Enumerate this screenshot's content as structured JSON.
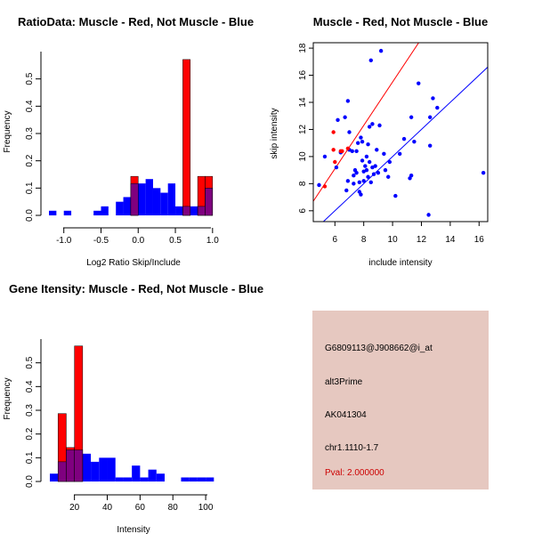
{
  "colors": {
    "red": "#ff0000",
    "blue": "#0000ff",
    "overlap": "#7f007f",
    "info_bg": "#e6c8c0",
    "pval": "#cc0000"
  },
  "chart_data": [
    {
      "type": "bar",
      "title": "RatioData: Muscle - Red, Not Muscle - Blue",
      "xlabel": "Log2 Ratio Skip/Include",
      "ylabel": "Frequency",
      "xlim": [
        -1.2,
        1.05
      ],
      "ylim": [
        0,
        0.6
      ],
      "xticks": [
        -1.0,
        -0.5,
        0.0,
        0.5,
        1.0
      ],
      "xtick_labels": [
        "-1.0",
        "-0.5",
        "0.0",
        "0.5",
        "1.0"
      ],
      "yticks": [
        0.0,
        0.1,
        0.2,
        0.3,
        0.4,
        0.5
      ],
      "ytick_labels": [
        "0.0",
        "0.1",
        "0.2",
        "0.3",
        "0.4",
        "0.5"
      ],
      "bin_width": 0.1,
      "series": [
        {
          "name": "Not Muscle",
          "color": "blue",
          "bins": [
            [
              -1.2,
              0.017
            ],
            [
              -1.0,
              0.017
            ],
            [
              -0.6,
              0.017
            ],
            [
              -0.5,
              0.033
            ],
            [
              -0.3,
              0.05
            ],
            [
              -0.2,
              0.067
            ],
            [
              -0.1,
              0.117
            ],
            [
              0.0,
              0.117
            ],
            [
              0.1,
              0.133
            ],
            [
              0.2,
              0.1
            ],
            [
              0.3,
              0.083
            ],
            [
              0.4,
              0.117
            ],
            [
              0.5,
              0.033
            ],
            [
              0.6,
              0.033
            ],
            [
              0.7,
              0.033
            ],
            [
              0.8,
              0.033
            ],
            [
              0.9,
              0.1
            ]
          ]
        },
        {
          "name": "Muscle",
          "color": "red",
          "bins": [
            [
              -0.1,
              0.143
            ],
            [
              0.6,
              0.571
            ],
            [
              0.8,
              0.143
            ],
            [
              0.9,
              0.143
            ]
          ]
        }
      ]
    },
    {
      "type": "scatter",
      "title": "Muscle - Red, Not Muscle - Blue",
      "xlabel": "include intensity",
      "ylabel": "skip intensity",
      "xlim": [
        4.5,
        16.6
      ],
      "ylim": [
        5.2,
        18.4
      ],
      "xticks": [
        6,
        8,
        10,
        12,
        14,
        16
      ],
      "xtick_labels": [
        "6",
        "8",
        "10",
        "12",
        "14",
        "16"
      ],
      "yticks": [
        6,
        8,
        10,
        12,
        14,
        16,
        18
      ],
      "ytick_labels": [
        "6",
        "8",
        "10",
        "12",
        "14",
        "16",
        "18"
      ],
      "lines": [
        {
          "name": "y = x",
          "color": "blue",
          "slope": 1,
          "intercept": 0
        },
        {
          "name": "muscle fit",
          "color": "red",
          "slope": 1.6,
          "intercept": -0.5
        }
      ],
      "series": [
        {
          "name": "Not Muscle",
          "color": "blue",
          "points": [
            [
              4.9,
              7.9
            ],
            [
              5.3,
              10.0
            ],
            [
              6.1,
              9.2
            ],
            [
              6.2,
              12.7
            ],
            [
              6.4,
              10.3
            ],
            [
              6.7,
              12.9
            ],
            [
              6.8,
              7.5
            ],
            [
              6.9,
              8.2
            ],
            [
              7.0,
              10.5
            ],
            [
              7.0,
              11.8
            ],
            [
              6.9,
              14.1
            ],
            [
              7.2,
              10.4
            ],
            [
              7.3,
              8.0
            ],
            [
              7.3,
              8.6
            ],
            [
              7.4,
              9.0
            ],
            [
              7.5,
              8.8
            ],
            [
              7.5,
              10.4
            ],
            [
              7.6,
              11.0
            ],
            [
              7.7,
              7.4
            ],
            [
              7.7,
              8.1
            ],
            [
              7.8,
              7.2
            ],
            [
              7.8,
              11.4
            ],
            [
              7.9,
              9.7
            ],
            [
              7.9,
              11.1
            ],
            [
              8.0,
              8.2
            ],
            [
              8.0,
              8.9
            ],
            [
              8.1,
              9.3
            ],
            [
              8.2,
              9.0
            ],
            [
              8.2,
              10.0
            ],
            [
              8.3,
              8.5
            ],
            [
              8.3,
              10.9
            ],
            [
              8.4,
              9.6
            ],
            [
              8.4,
              12.2
            ],
            [
              8.5,
              8.1
            ],
            [
              8.5,
              17.1
            ],
            [
              8.6,
              9.2
            ],
            [
              8.6,
              12.4
            ],
            [
              8.7,
              8.7
            ],
            [
              8.8,
              9.3
            ],
            [
              8.9,
              10.5
            ],
            [
              9.0,
              8.8
            ],
            [
              9.1,
              12.3
            ],
            [
              9.2,
              17.8
            ],
            [
              9.4,
              10.2
            ],
            [
              9.5,
              9.0
            ],
            [
              9.7,
              8.5
            ],
            [
              9.8,
              9.6
            ],
            [
              10.2,
              7.1
            ],
            [
              10.5,
              10.2
            ],
            [
              10.8,
              11.3
            ],
            [
              11.2,
              8.4
            ],
            [
              11.3,
              12.9
            ],
            [
              11.3,
              8.6
            ],
            [
              11.5,
              11.1
            ],
            [
              11.8,
              15.4
            ],
            [
              12.5,
              5.7
            ],
            [
              12.6,
              12.9
            ],
            [
              12.6,
              10.8
            ],
            [
              12.8,
              14.3
            ],
            [
              13.1,
              13.6
            ],
            [
              16.3,
              8.8
            ]
          ]
        },
        {
          "name": "Muscle",
          "color": "red",
          "points": [
            [
              5.3,
              7.8
            ],
            [
              5.9,
              10.5
            ],
            [
              5.9,
              11.8
            ],
            [
              6.0,
              9.6
            ],
            [
              6.4,
              10.4
            ],
            [
              6.5,
              10.4
            ],
            [
              6.9,
              10.6
            ]
          ]
        }
      ]
    },
    {
      "type": "bar",
      "title": "Gene Itensity: Muscle - Red, Not Muscle - Blue",
      "xlabel": "Intensity",
      "ylabel": "Frequency",
      "xlim": [
        5,
        107
      ],
      "ylim": [
        0,
        0.6
      ],
      "xticks": [
        20,
        40,
        60,
        80,
        100
      ],
      "xtick_labels": [
        "20",
        "40",
        "60",
        "80",
        "100"
      ],
      "yticks": [
        0.0,
        0.1,
        0.2,
        0.3,
        0.4,
        0.5
      ],
      "ytick_labels": [
        "0.0",
        "0.1",
        "0.2",
        "0.3",
        "0.4",
        "0.5"
      ],
      "bin_width": 5,
      "series": [
        {
          "name": "Not Muscle",
          "color": "blue",
          "bins": [
            [
              5,
              0.033
            ],
            [
              10,
              0.083
            ],
            [
              15,
              0.133
            ],
            [
              20,
              0.133
            ],
            [
              25,
              0.117
            ],
            [
              30,
              0.083
            ],
            [
              35,
              0.1
            ],
            [
              40,
              0.1
            ],
            [
              45,
              0.017
            ],
            [
              50,
              0.017
            ],
            [
              55,
              0.067
            ],
            [
              60,
              0.017
            ],
            [
              65,
              0.05
            ],
            [
              70,
              0.033
            ],
            [
              85,
              0.017
            ],
            [
              90,
              0.017
            ],
            [
              95,
              0.017
            ],
            [
              100,
              0.017
            ]
          ]
        },
        {
          "name": "Muscle",
          "color": "red",
          "bins": [
            [
              10,
              0.286
            ],
            [
              15,
              0.143
            ],
            [
              20,
              0.571
            ]
          ]
        }
      ]
    }
  ],
  "info_panel": {
    "probe_id": "G6809113@J908662@i_at",
    "event_type": "alt3Prime",
    "accession": "AK041304",
    "location": "chr1.1110-1.7",
    "pval": "Pval: 2.000000"
  }
}
